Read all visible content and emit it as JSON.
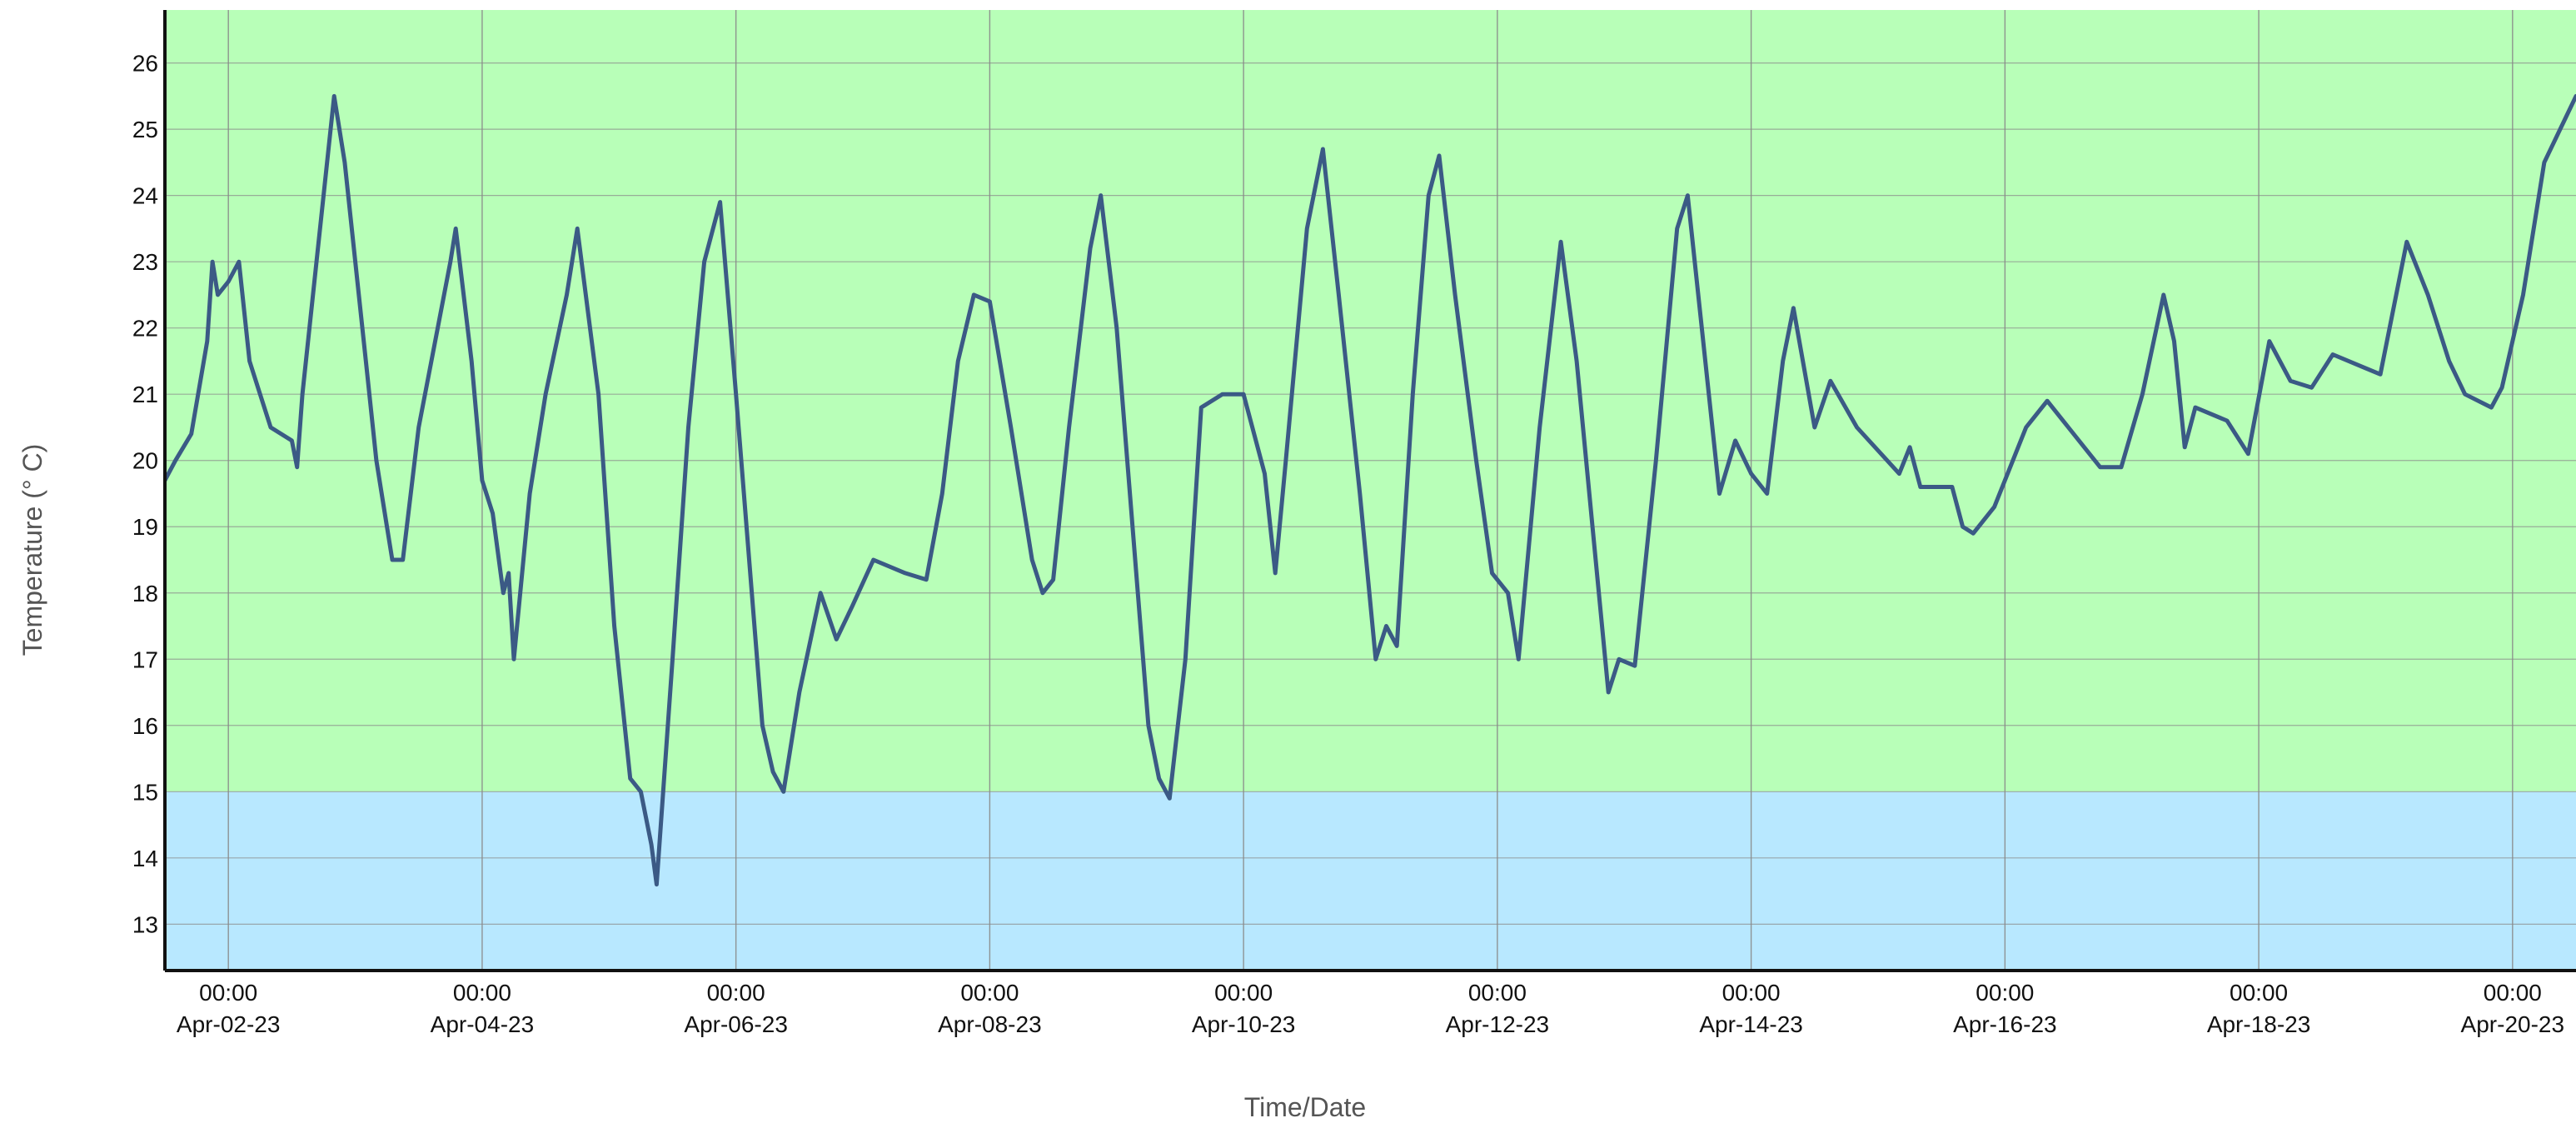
{
  "chart_data": {
    "type": "line",
    "title": "",
    "xlabel": "Time/Date",
    "ylabel": "Temperature (° C)",
    "x_range": [
      "2023-04-01 12:00",
      "2023-04-20 12:00"
    ],
    "ylim": [
      12.3,
      26.8
    ],
    "y_ticks": [
      13,
      14,
      15,
      16,
      17,
      18,
      19,
      20,
      21,
      22,
      23,
      24,
      25,
      26
    ],
    "x_ticks": [
      {
        "time": "2023-04-02 00:00",
        "line1": "00:00",
        "line2": "Apr-02-23"
      },
      {
        "time": "2023-04-04 00:00",
        "line1": "00:00",
        "line2": "Apr-04-23"
      },
      {
        "time": "2023-04-06 00:00",
        "line1": "00:00",
        "line2": "Apr-06-23"
      },
      {
        "time": "2023-04-08 00:00",
        "line1": "00:00",
        "line2": "Apr-08-23"
      },
      {
        "time": "2023-04-10 00:00",
        "line1": "00:00",
        "line2": "Apr-10-23"
      },
      {
        "time": "2023-04-12 00:00",
        "line1": "00:00",
        "line2": "Apr-12-23"
      },
      {
        "time": "2023-04-14 00:00",
        "line1": "00:00",
        "line2": "Apr-14-23"
      },
      {
        "time": "2023-04-16 00:00",
        "line1": "00:00",
        "line2": "Apr-16-23"
      },
      {
        "time": "2023-04-18 00:00",
        "line1": "00:00",
        "line2": "Apr-18-23"
      },
      {
        "time": "2023-04-20 00:00",
        "line1": "00:00",
        "line2": "Apr-20-23"
      }
    ],
    "bands": [
      {
        "y_from": 15,
        "y_to": 26.8,
        "color": "#b8ffb8"
      },
      {
        "y_from": 12.3,
        "y_to": 15,
        "color": "#b8e8ff"
      }
    ],
    "grid": true,
    "grid_color": "#8a8a8a",
    "line_color": "#3b5a85",
    "series": [
      {
        "points": [
          [
            "2023-04-01 12:00",
            19.7
          ],
          [
            "2023-04-01 14:00",
            20.0
          ],
          [
            "2023-04-01 17:00",
            20.4
          ],
          [
            "2023-04-01 20:00",
            21.8
          ],
          [
            "2023-04-01 21:00",
            23.0
          ],
          [
            "2023-04-01 22:00",
            22.5
          ],
          [
            "2023-04-02 00:00",
            22.7
          ],
          [
            "2023-04-02 02:00",
            23.0
          ],
          [
            "2023-04-02 04:00",
            21.5
          ],
          [
            "2023-04-02 06:00",
            21.0
          ],
          [
            "2023-04-02 08:00",
            20.5
          ],
          [
            "2023-04-02 12:00",
            20.3
          ],
          [
            "2023-04-02 13:00",
            19.9
          ],
          [
            "2023-04-02 14:00",
            21.0
          ],
          [
            "2023-04-02 18:00",
            24.0
          ],
          [
            "2023-04-02 20:00",
            25.5
          ],
          [
            "2023-04-02 22:00",
            24.5
          ],
          [
            "2023-04-03 02:00",
            21.5
          ],
          [
            "2023-04-03 04:00",
            20.0
          ],
          [
            "2023-04-03 06:00",
            19.0
          ],
          [
            "2023-04-03 07:00",
            18.5
          ],
          [
            "2023-04-03 09:00",
            18.5
          ],
          [
            "2023-04-03 12:00",
            20.5
          ],
          [
            "2023-04-03 18:00",
            23.0
          ],
          [
            "2023-04-03 19:00",
            23.5
          ],
          [
            "2023-04-03 22:00",
            21.5
          ],
          [
            "2023-04-04 00:00",
            19.7
          ],
          [
            "2023-04-04 02:00",
            19.2
          ],
          [
            "2023-04-04 04:00",
            18.0
          ],
          [
            "2023-04-04 05:00",
            18.3
          ],
          [
            "2023-04-04 06:00",
            17.0
          ],
          [
            "2023-04-04 09:00",
            19.5
          ],
          [
            "2023-04-04 12:00",
            21.0
          ],
          [
            "2023-04-04 16:00",
            22.5
          ],
          [
            "2023-04-04 18:00",
            23.5
          ],
          [
            "2023-04-04 22:00",
            21.0
          ],
          [
            "2023-04-05 01:00",
            17.5
          ],
          [
            "2023-04-05 04:00",
            15.2
          ],
          [
            "2023-04-05 06:00",
            15.0
          ],
          [
            "2023-04-05 08:00",
            14.2
          ],
          [
            "2023-04-05 09:00",
            13.6
          ],
          [
            "2023-04-05 12:00",
            17.0
          ],
          [
            "2023-04-05 15:00",
            20.5
          ],
          [
            "2023-04-05 18:00",
            23.0
          ],
          [
            "2023-04-05 21:00",
            23.9
          ],
          [
            "2023-04-06 00:00",
            21.0
          ],
          [
            "2023-04-06 03:00",
            18.0
          ],
          [
            "2023-04-06 05:00",
            16.0
          ],
          [
            "2023-04-06 07:00",
            15.3
          ],
          [
            "2023-04-06 09:00",
            15.0
          ],
          [
            "2023-04-06 12:00",
            16.5
          ],
          [
            "2023-04-06 16:00",
            18.0
          ],
          [
            "2023-04-06 19:00",
            17.3
          ],
          [
            "2023-04-06 22:00",
            17.8
          ],
          [
            "2023-04-07 02:00",
            18.5
          ],
          [
            "2023-04-07 08:00",
            18.3
          ],
          [
            "2023-04-07 12:00",
            18.2
          ],
          [
            "2023-04-07 15:00",
            19.5
          ],
          [
            "2023-04-07 18:00",
            21.5
          ],
          [
            "2023-04-07 21:00",
            22.5
          ],
          [
            "2023-04-08 00:00",
            22.4
          ],
          [
            "2023-04-08 04:00",
            20.5
          ],
          [
            "2023-04-08 08:00",
            18.5
          ],
          [
            "2023-04-08 10:00",
            18.0
          ],
          [
            "2023-04-08 12:00",
            18.2
          ],
          [
            "2023-04-08 15:00",
            20.5
          ],
          [
            "2023-04-08 19:00",
            23.2
          ],
          [
            "2023-04-08 21:00",
            24.0
          ],
          [
            "2023-04-09 00:00",
            22.0
          ],
          [
            "2023-04-09 04:00",
            18.0
          ],
          [
            "2023-04-09 06:00",
            16.0
          ],
          [
            "2023-04-09 08:00",
            15.2
          ],
          [
            "2023-04-09 10:00",
            14.9
          ],
          [
            "2023-04-09 13:00",
            17.0
          ],
          [
            "2023-04-09 16:00",
            20.8
          ],
          [
            "2023-04-09 20:00",
            21.0
          ],
          [
            "2023-04-10 00:00",
            21.0
          ],
          [
            "2023-04-10 04:00",
            19.8
          ],
          [
            "2023-04-10 06:00",
            18.3
          ],
          [
            "2023-04-10 08:00",
            20.0
          ],
          [
            "2023-04-10 12:00",
            23.5
          ],
          [
            "2023-04-10 15:00",
            24.7
          ],
          [
            "2023-04-10 18:00",
            22.5
          ],
          [
            "2023-04-10 22:00",
            19.5
          ],
          [
            "2023-04-11 01:00",
            17.0
          ],
          [
            "2023-04-11 03:00",
            17.5
          ],
          [
            "2023-04-11 05:00",
            17.2
          ],
          [
            "2023-04-11 08:00",
            21.0
          ],
          [
            "2023-04-11 11:00",
            24.0
          ],
          [
            "2023-04-11 13:00",
            24.6
          ],
          [
            "2023-04-11 16:00",
            22.5
          ],
          [
            "2023-04-11 20:00",
            20.0
          ],
          [
            "2023-04-11 23:00",
            18.3
          ],
          [
            "2023-04-12 02:00",
            18.0
          ],
          [
            "2023-04-12 04:00",
            17.0
          ],
          [
            "2023-04-12 08:00",
            20.5
          ],
          [
            "2023-04-12 12:00",
            23.3
          ],
          [
            "2023-04-12 15:00",
            21.5
          ],
          [
            "2023-04-12 18:00",
            19.0
          ],
          [
            "2023-04-12 21:00",
            16.5
          ],
          [
            "2023-04-12 23:00",
            17.0
          ],
          [
            "2023-04-13 02:00",
            16.9
          ],
          [
            "2023-04-13 06:00",
            20.0
          ],
          [
            "2023-04-13 10:00",
            23.5
          ],
          [
            "2023-04-13 12:00",
            24.0
          ],
          [
            "2023-04-13 16:00",
            21.0
          ],
          [
            "2023-04-13 18:00",
            19.5
          ],
          [
            "2023-04-13 21:00",
            20.3
          ],
          [
            "2023-04-14 00:00",
            19.8
          ],
          [
            "2023-04-14 03:00",
            19.5
          ],
          [
            "2023-04-14 06:00",
            21.5
          ],
          [
            "2023-04-14 08:00",
            22.3
          ],
          [
            "2023-04-14 12:00",
            20.5
          ],
          [
            "2023-04-14 15:00",
            21.2
          ],
          [
            "2023-04-14 20:00",
            20.5
          ],
          [
            "2023-04-15 04:00",
            19.8
          ],
          [
            "2023-04-15 06:00",
            20.2
          ],
          [
            "2023-04-15 08:00",
            19.6
          ],
          [
            "2023-04-15 14:00",
            19.6
          ],
          [
            "2023-04-15 16:00",
            19.0
          ],
          [
            "2023-04-15 18:00",
            18.9
          ],
          [
            "2023-04-15 22:00",
            19.3
          ],
          [
            "2023-04-16 04:00",
            20.5
          ],
          [
            "2023-04-16 08:00",
            20.9
          ],
          [
            "2023-04-16 12:00",
            20.5
          ],
          [
            "2023-04-16 18:00",
            19.9
          ],
          [
            "2023-04-16 22:00",
            19.9
          ],
          [
            "2023-04-17 02:00",
            21.0
          ],
          [
            "2023-04-17 06:00",
            22.5
          ],
          [
            "2023-04-17 08:00",
            21.8
          ],
          [
            "2023-04-17 10:00",
            20.2
          ],
          [
            "2023-04-17 12:00",
            20.8
          ],
          [
            "2023-04-17 18:00",
            20.6
          ],
          [
            "2023-04-17 22:00",
            20.1
          ],
          [
            "2023-04-18 02:00",
            21.8
          ],
          [
            "2023-04-18 06:00",
            21.2
          ],
          [
            "2023-04-18 10:00",
            21.1
          ],
          [
            "2023-04-18 14:00",
            21.6
          ],
          [
            "2023-04-18 20:00",
            21.4
          ],
          [
            "2023-04-18 23:00",
            21.3
          ],
          [
            "2023-04-19 04:00",
            23.3
          ],
          [
            "2023-04-19 08:00",
            22.5
          ],
          [
            "2023-04-19 12:00",
            21.5
          ],
          [
            "2023-04-19 15:00",
            21.0
          ],
          [
            "2023-04-19 20:00",
            20.8
          ],
          [
            "2023-04-19 22:00",
            21.1
          ],
          [
            "2023-04-20 02:00",
            22.5
          ],
          [
            "2023-04-20 06:00",
            24.5
          ],
          [
            "2023-04-20 12:00",
            25.5
          ]
        ]
      }
    ]
  }
}
